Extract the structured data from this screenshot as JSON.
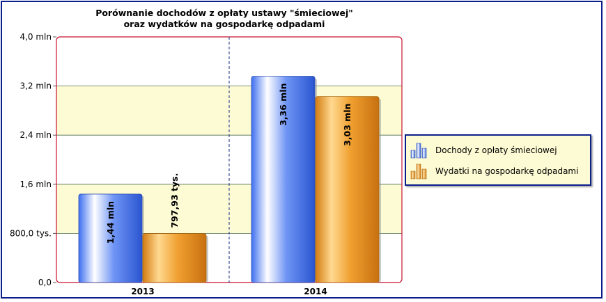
{
  "chart_data": {
    "type": "bar",
    "title_lines": [
      "Porównanie dochodów z opłaty ustawy \"śmieciowej\"",
      "oraz wydatków na gospodarkę odpadami"
    ],
    "categories": [
      "2013",
      "2014"
    ],
    "series": [
      {
        "name": "Dochody z opłaty śmieciowej",
        "values": [
          1440000,
          3360000
        ],
        "value_labels": [
          "1,44 mln",
          "3,36 mln"
        ],
        "color": "#4f7ff0"
      },
      {
        "name": "Wydatki na gospodarkę odpadami",
        "values": [
          797930,
          3030000
        ],
        "value_labels": [
          "797,93 tys.",
          "3,03 mln"
        ],
        "color": "#e8901f"
      }
    ],
    "y_ticks": [
      0,
      800000,
      1600000,
      2400000,
      3200000,
      4000000
    ],
    "y_tick_labels": [
      "0,0",
      "800,0 tys.",
      "1,6 mln",
      "2,4 mln",
      "3,2 mln",
      "4,0 mln"
    ],
    "ylim": [
      0,
      4000000
    ],
    "grid": true,
    "legend_position": "right",
    "colors": {
      "frame": "#0b1f8c",
      "plot_border": "#c8102e",
      "band": "#fdfbd3"
    }
  }
}
